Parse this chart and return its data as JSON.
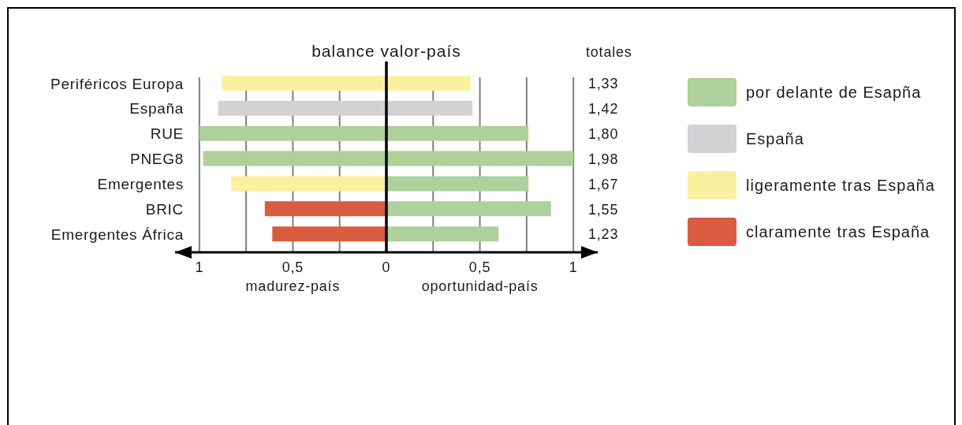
{
  "chart_data": {
    "type": "bar",
    "orientation": "horizontal",
    "stacked": true,
    "title": "balance valor-país",
    "categories": [
      "Periféricos Europa",
      "España",
      "RUE",
      "PNEG8",
      "Emergentes",
      "BRIC",
      "Emergentes África"
    ],
    "series": [
      {
        "name": "por delante de Esapña",
        "color": "#aed09a",
        "values": [
          null,
          null,
          0.76,
          1.0,
          0.76,
          0.88,
          0.6
        ]
      },
      {
        "name": "España",
        "color": "#d1d2d4",
        "values": [
          null,
          0.46,
          null,
          null,
          null,
          null,
          null
        ]
      },
      {
        "name": "ligeramente tras España",
        "color": "#f9f0a0",
        "values": [
          0.45,
          null,
          null,
          null,
          null,
          null,
          null
        ]
      },
      {
        "name": "claramente tras España",
        "color": "#d95c40",
        "values": [
          null,
          null,
          null,
          null,
          null,
          -0.65,
          -0.61
        ]
      },
      {
        "color": "#aed09a",
        "values": [
          null,
          null,
          -1.0,
          -0.98,
          null,
          null,
          null
        ]
      },
      {
        "color": "#d1d2d4",
        "values": [
          null,
          -0.9,
          null,
          null,
          null,
          null,
          null
        ]
      },
      {
        "color": "#f9f0a0",
        "values": [
          -0.88,
          null,
          null,
          null,
          -0.83,
          null,
          null
        ]
      }
    ],
    "xlim": [
      -1.13,
      1.13
    ],
    "xticks": [
      {
        "value": -1,
        "label": "1"
      },
      {
        "value": -0.75,
        "label": null
      },
      {
        "value": -0.5,
        "label": "0,5"
      },
      {
        "value": -0.25,
        "label": null
      },
      0,
      {
        "value": 0.25,
        "label": null
      },
      {
        "value": 0.5,
        "label": "0,5"
      },
      {
        "value": 0.75,
        "label": null
      },
      1
    ],
    "grid": "x",
    "legend": "right",
    "ref_lines": [
      {
        "axis": "x",
        "value": 0,
        "color": "#000000"
      }
    ],
    "annotations": [
      "madurez-país",
      "oportunidad-país",
      "totales",
      "1,33",
      "1,42",
      "1,80",
      "1,98",
      "1,67",
      "1,55",
      "1,23"
    ]
  }
}
